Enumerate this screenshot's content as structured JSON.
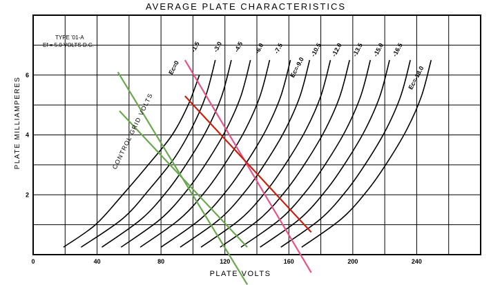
{
  "chart_data": {
    "type": "line",
    "title": "AVERAGE PLATE CHARACTERISTICS",
    "xlabel": "PLATE VOLTS",
    "ylabel": "PLATE MILLIAMPERES",
    "xlim": [
      0,
      280
    ],
    "ylim": [
      0,
      8
    ],
    "x_ticks": [
      0,
      40,
      80,
      120,
      160,
      200,
      240
    ],
    "y_ticks": [
      2,
      4,
      6
    ],
    "grid": true,
    "annotation": {
      "line1": "TYPE '01-A",
      "line2": "Ef = 5.0 VOLTS D.C."
    },
    "family_label": "CONTROL GRID VOLTS",
    "series": [
      {
        "name": "Ec=0",
        "x": [
          19,
          39,
          56,
          72,
          87,
          97,
          104
        ],
        "y": [
          0.25,
          1,
          2,
          3,
          4,
          5,
          6
        ]
      },
      {
        "name": "-1.5",
        "x": [
          30,
          56,
          73,
          88,
          99,
          108,
          114
        ],
        "y": [
          0.25,
          1.2,
          2.2,
          3.2,
          4.2,
          5.3,
          6.5
        ]
      },
      {
        "name": "-3.0",
        "x": [
          43,
          68,
          85,
          98,
          109,
          118,
          124
        ],
        "y": [
          0.25,
          1.2,
          2.2,
          3.2,
          4.2,
          5.3,
          6.5
        ]
      },
      {
        "name": "-4.5",
        "x": [
          55,
          80,
          97,
          110,
          121,
          130,
          136
        ],
        "y": [
          0.25,
          1.2,
          2.2,
          3.2,
          4.2,
          5.3,
          6.5
        ]
      },
      {
        "name": "-6.0",
        "x": [
          67,
          92,
          109,
          122,
          133,
          142,
          148
        ],
        "y": [
          0.25,
          1.2,
          2.2,
          3.2,
          4.2,
          5.3,
          6.5
        ]
      },
      {
        "name": "-7.5",
        "x": [
          80,
          105,
          122,
          135,
          146,
          155,
          161
        ],
        "y": [
          0.25,
          1.2,
          2.2,
          3.2,
          4.2,
          5.3,
          6.5
        ]
      },
      {
        "name": "-9.0",
        "x": [
          92,
          117,
          134,
          147,
          158,
          167,
          173
        ],
        "y": [
          0.25,
          1.2,
          2.2,
          3.2,
          4.2,
          5.3,
          6.5
        ]
      },
      {
        "name": "-10.5",
        "x": [
          105,
          130,
          147,
          160,
          171,
          180,
          186
        ],
        "y": [
          0.25,
          1.2,
          2.2,
          3.2,
          4.2,
          5.3,
          6.5
        ]
      },
      {
        "name": "-12.0",
        "x": [
          117,
          142,
          159,
          172,
          183,
          192,
          198
        ],
        "y": [
          0.25,
          1.2,
          2.2,
          3.2,
          4.2,
          5.3,
          6.5
        ]
      },
      {
        "name": "-13.5",
        "x": [
          130,
          155,
          172,
          185,
          196,
          205,
          211
        ],
        "y": [
          0.25,
          1.2,
          2.2,
          3.2,
          4.2,
          5.3,
          6.5
        ]
      },
      {
        "name": "-15.0",
        "x": [
          142,
          167,
          184,
          197,
          208,
          217,
          223
        ],
        "y": [
          0.25,
          1.2,
          2.2,
          3.2,
          4.2,
          5.3,
          6.5
        ]
      },
      {
        "name": "-16.5",
        "x": [
          155,
          180,
          197,
          210,
          221,
          230,
          236
        ],
        "y": [
          0.25,
          1.2,
          2.2,
          3.2,
          4.2,
          5.3,
          6.5
        ]
      },
      {
        "name": "Ec=-18.0",
        "x": [
          168,
          193,
          210,
          223,
          234,
          243,
          249
        ],
        "y": [
          0.25,
          1.2,
          2.2,
          3.2,
          4.2,
          5.3,
          6.5
        ]
      }
    ],
    "curve_labels": [
      {
        "text": "Ec=0",
        "x": 87,
        "y": 6.0
      },
      {
        "text": "-1.5",
        "x": 101,
        "y": 6.75
      },
      {
        "text": "-3.0",
        "x": 115,
        "y": 6.75
      },
      {
        "text": "-4.5",
        "x": 128,
        "y": 6.75
      },
      {
        "text": "-6.0",
        "x": 141,
        "y": 6.7
      },
      {
        "text": "-7.5",
        "x": 153,
        "y": 6.7
      },
      {
        "text": "Ec=-9.0",
        "x": 163,
        "y": 5.9
      },
      {
        "text": "-10.5",
        "x": 176,
        "y": 6.6
      },
      {
        "text": "-12.0",
        "x": 189,
        "y": 6.6
      },
      {
        "text": "-13.5",
        "x": 202,
        "y": 6.6
      },
      {
        "text": "-15.0",
        "x": 215,
        "y": 6.6
      },
      {
        "text": "-16.5",
        "x": 227,
        "y": 6.6
      },
      {
        "text": "Ec=-18.0",
        "x": 237,
        "y": 5.5
      }
    ],
    "load_lines": [
      {
        "color": "#e8508a",
        "x": [
          95,
          174
        ],
        "y": [
          6.5,
          -0.6
        ]
      },
      {
        "color": "#c8200e",
        "x": [
          95,
          174
        ],
        "y": [
          5.3,
          0.75
        ]
      },
      {
        "color": "#6aa84f",
        "x": [
          53,
          134
        ],
        "y": [
          6.1,
          -1.0
        ]
      },
      {
        "color": "#6aa84f",
        "x": [
          54,
          134
        ],
        "y": [
          4.8,
          0.25
        ]
      }
    ]
  }
}
